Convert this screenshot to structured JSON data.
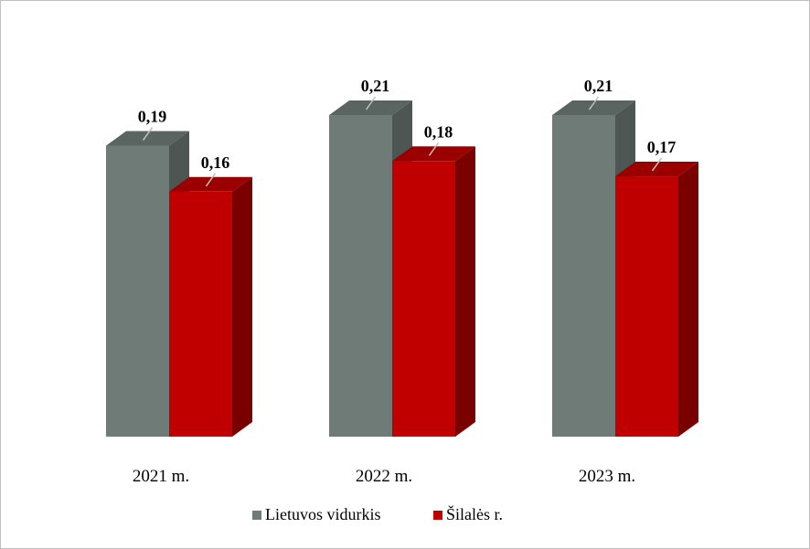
{
  "chart_data": {
    "type": "bar",
    "style": "3d-clustered-column",
    "categories": [
      "2021 m.",
      "2022 m.",
      "2023 m."
    ],
    "series": [
      {
        "name": "Lietuvos vidurkis",
        "values": [
          0.19,
          0.21,
          0.21
        ],
        "labels": [
          "0,19",
          "0,21",
          "0,21"
        ],
        "color": "#6e7b77",
        "side_color": "#4d5652",
        "top_color": "#5a6561"
      },
      {
        "name": "Šilalės r.",
        "values": [
          0.16,
          0.18,
          0.17
        ],
        "labels": [
          "0,16",
          "0,18",
          "0,17"
        ],
        "color": "#c00000",
        "side_color": "#7a0000",
        "top_color": "#9a0000"
      }
    ],
    "ylim": [
      0,
      0.21
    ],
    "grid": false,
    "axis_lines": false,
    "legend_position": "bottom"
  }
}
